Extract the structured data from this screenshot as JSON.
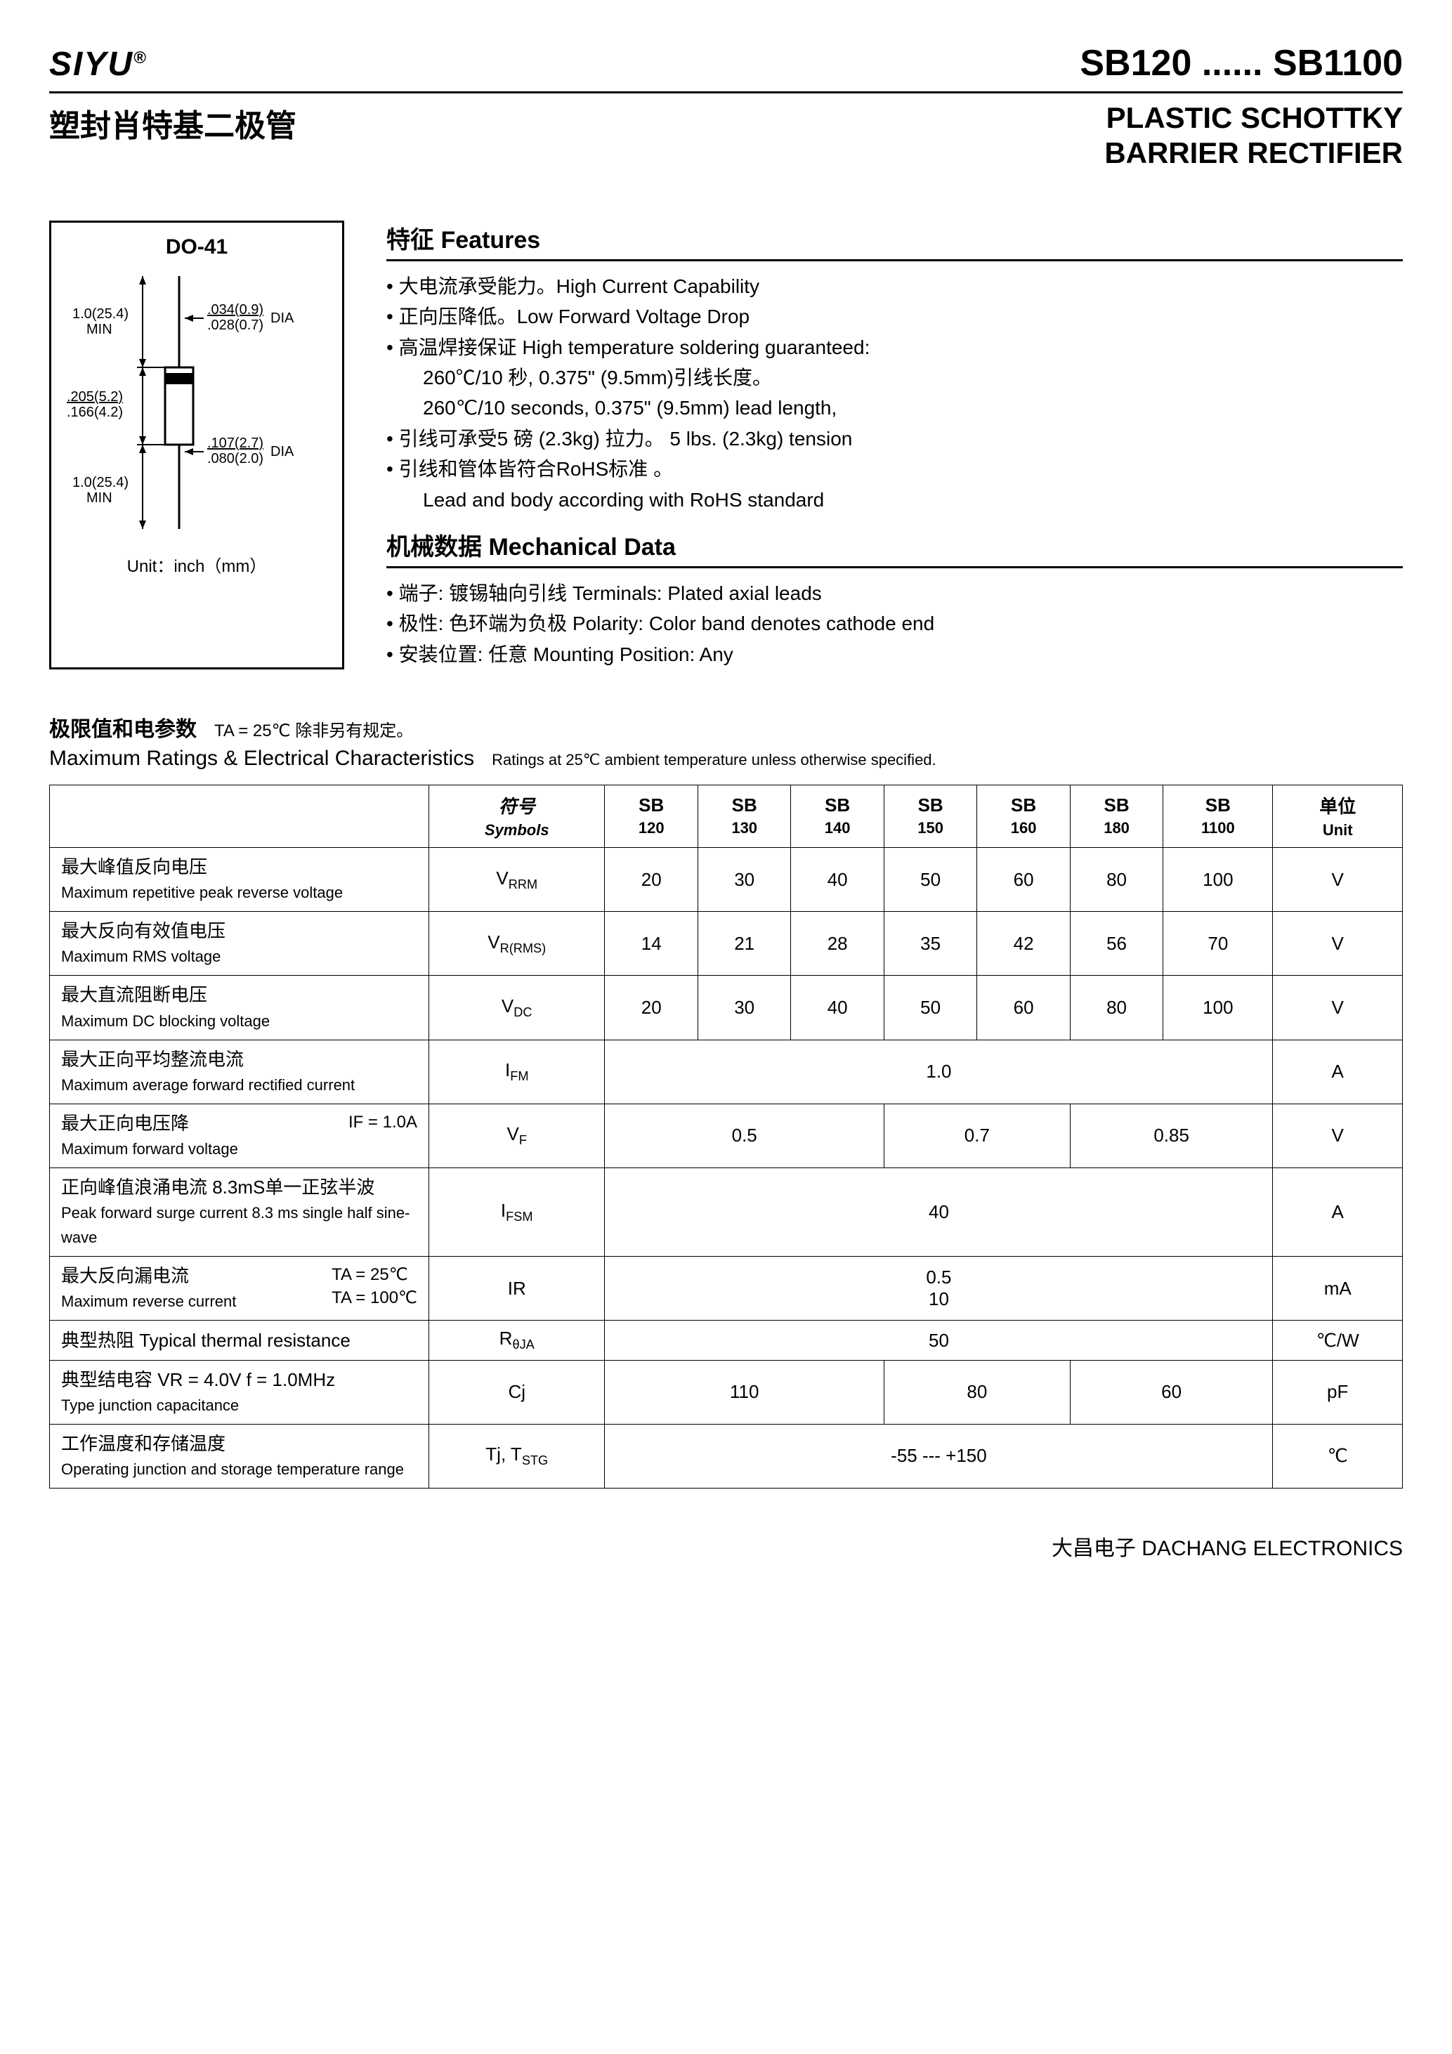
{
  "header": {
    "brand": "SIYU",
    "brand_symbol": "®",
    "part_range": "SB120 ...... SB1100",
    "cn_title": "塑封肖特基二极管",
    "en_title_1": "PLASTIC SCHOTTKY",
    "en_title_2": "BARRIER RECTIFIER"
  },
  "diagram": {
    "package": "DO-41",
    "dim_lead_len": "1.0(25.4)\nMIN",
    "dim_body_dia_top": ".034(0.9)",
    "dim_body_dia_bot": ".028(0.7)",
    "dia_label": "DIA",
    "dim_body_len_top": ".205(5.2)",
    "dim_body_len_bot": ".166(4.2)",
    "dim_lead_dia_top": ".107(2.7)",
    "dim_lead_dia_bot": ".080(2.0)",
    "unit_text": "Unit：inch（mm）"
  },
  "features": {
    "heading": "特征 Features",
    "items": [
      "大电流承受能力。High Current Capability",
      "正向压降低。Low Forward Voltage Drop",
      "高温焊接保证  High temperature soldering guaranteed:"
    ],
    "indent_items": [
      "260℃/10 秒, 0.375\" (9.5mm)引线长度。",
      "260℃/10 seconds, 0.375\" (9.5mm) lead length,"
    ],
    "items2": [
      "引线可承受5 磅 (2.3kg) 拉力。 5 lbs. (2.3kg) tension",
      "引线和管体皆符合RoHS标准 。"
    ],
    "indent_items2": [
      "Lead and body according with RoHS standard"
    ]
  },
  "mechanical": {
    "heading": "机械数据 Mechanical Data",
    "items": [
      "端子: 镀锡轴向引线  Terminals: Plated axial leads",
      "极性: 色环端为负极  Polarity: Color band denotes cathode end",
      "安装位置: 任意  Mounting Position: Any"
    ]
  },
  "ratings": {
    "hed_cn": "极限值和电参数",
    "hed_cond_cn": "TA = 25℃  除非另有规定。",
    "hed_en": "Maximum Ratings & Electrical Characteristics",
    "hed_cond_en": "Ratings at 25℃ ambient temperature unless otherwise specified."
  },
  "table": {
    "columns": [
      {
        "cn": "符号",
        "en": "Symbols"
      },
      {
        "cn": "SB",
        "en": "120"
      },
      {
        "cn": "SB",
        "en": "130"
      },
      {
        "cn": "SB",
        "en": "140"
      },
      {
        "cn": "SB",
        "en": "150"
      },
      {
        "cn": "SB",
        "en": "160"
      },
      {
        "cn": "SB",
        "en": "180"
      },
      {
        "cn": "SB",
        "en": "1100"
      },
      {
        "cn": "单位",
        "en": "Unit"
      }
    ],
    "rows": [
      {
        "cn": "最大峰值反向电压",
        "en": "Maximum repetitive peak reverse voltage",
        "sym": "V",
        "sym_sub": "RRM",
        "vals": [
          "20",
          "30",
          "40",
          "50",
          "60",
          "80",
          "100"
        ],
        "unit": "V"
      },
      {
        "cn": "最大反向有效值电压",
        "en": "Maximum RMS voltage",
        "sym": "V",
        "sym_sub": "R(RMS)",
        "vals": [
          "14",
          "21",
          "28",
          "35",
          "42",
          "56",
          "70"
        ],
        "unit": "V"
      },
      {
        "cn": "最大直流阻断电压",
        "en": "Maximum DC blocking voltage",
        "sym": "V",
        "sym_sub": "DC",
        "vals": [
          "20",
          "30",
          "40",
          "50",
          "60",
          "80",
          "100"
        ],
        "unit": "V"
      },
      {
        "cn": "最大正向平均整流电流",
        "en": "Maximum average forward rectified current",
        "sym": "I",
        "sym_sub": "FM",
        "span7": "1.0",
        "unit": "A"
      },
      {
        "cn": "最大正向电压降",
        "en": "Maximum forward voltage",
        "cond": "IF = 1.0A",
        "sym": "V",
        "sym_sub": "F",
        "spans": [
          {
            "c": 3,
            "v": "0.5"
          },
          {
            "c": 2,
            "v": "0.7"
          },
          {
            "c": 2,
            "v": "0.85"
          }
        ],
        "unit": "V"
      },
      {
        "cn": "正向峰值浪涌电流  8.3mS单一正弦半波",
        "en": "Peak forward surge current 8.3 ms single half sine-wave",
        "sym": "I",
        "sym_sub": "FSM",
        "span7": "40",
        "unit": "A"
      },
      {
        "cn": "最大反向漏电流",
        "en": "Maximum reverse current",
        "cond2": [
          "TA = 25℃",
          "TA = 100℃"
        ],
        "sym": "IR",
        "sym_sub": "",
        "span7_2": [
          "0.5",
          "10"
        ],
        "unit": "mA"
      },
      {
        "cn": "典型热阻      Typical thermal resistance",
        "en": "",
        "sym": "R",
        "sym_sub": "θJA",
        "span7": "50",
        "unit": "℃/W"
      },
      {
        "cn": "典型结电容   VR = 4.0V  f = 1.0MHz",
        "en": "Type junction capacitance",
        "sym": "Cj",
        "sym_sub": "",
        "spans": [
          {
            "c": 3,
            "v": "110"
          },
          {
            "c": 2,
            "v": "80"
          },
          {
            "c": 2,
            "v": "60"
          }
        ],
        "unit": "pF"
      },
      {
        "cn": "工作温度和存储温度",
        "en": "Operating junction and storage temperature range",
        "sym_raw": "Tj, T<sub>STG</sub>",
        "span7": "-55 --- +150",
        "unit": "℃"
      }
    ]
  },
  "footer": "大昌电子  DACHANG ELECTRONICS"
}
